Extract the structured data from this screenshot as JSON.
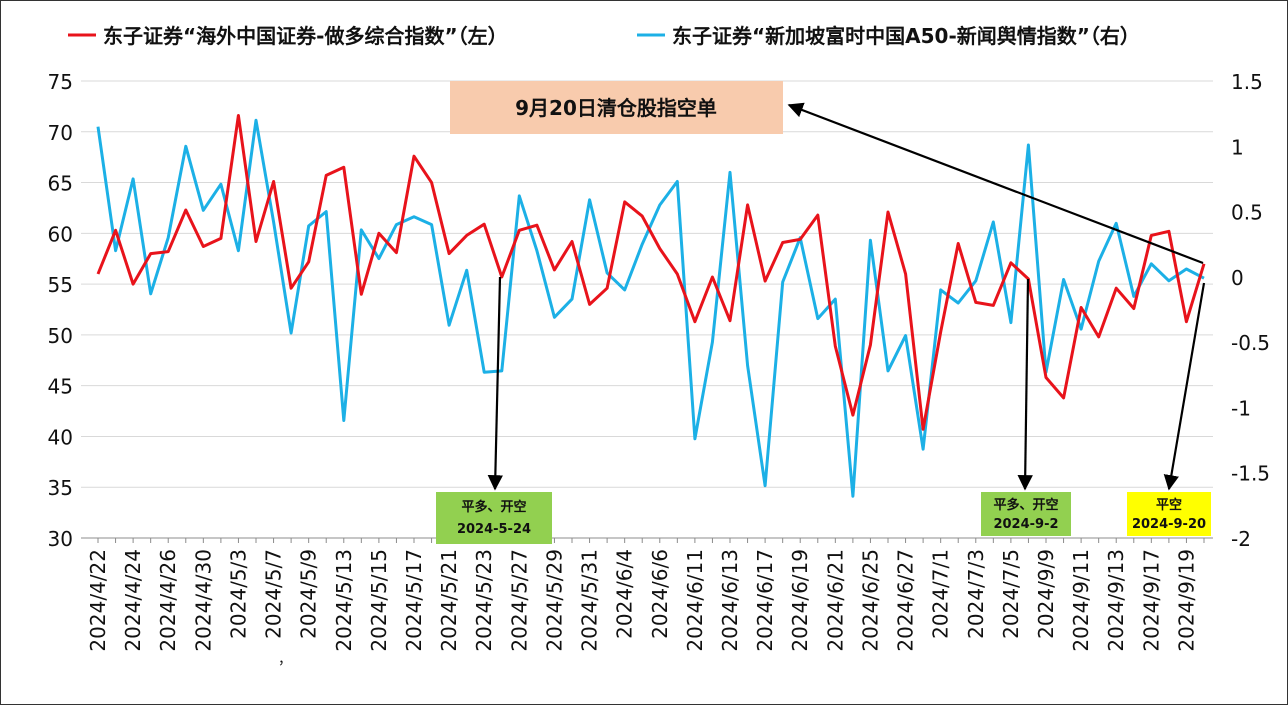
{
  "chart_data": {
    "type": "line",
    "title": "",
    "legend": {
      "placement": "top",
      "left_label": "东子证券“海外中国证券-做多综合指数”（左）",
      "right_label": "东子证券“新加坡富时中国A50-新闻舆情指数”（右）"
    },
    "colors": {
      "left_series": "#e8131b",
      "right_series": "#1cb0e6",
      "grid": "#d9d9d9"
    },
    "y_left": {
      "min": 30,
      "max": 75,
      "ticks": [
        "30",
        "35",
        "40",
        "45",
        "50",
        "55",
        "60",
        "65",
        "70",
        "75"
      ]
    },
    "y_right": {
      "min": -2,
      "max": 1.5,
      "ticks": [
        "-2",
        "-1.5",
        "-1",
        "-0.5",
        "0",
        "0.5",
        "1",
        "1.5"
      ]
    },
    "x_tick_labels": [
      "2024/4/22",
      "2024/4/24",
      "2024/4/26",
      "2024/4/30",
      "2024/5/3",
      "2024/5/7",
      "2024/5/9",
      "2024/5/13",
      "2024/5/15",
      "2024/5/17",
      "2024/5/21",
      "2024/5/23",
      "2024/5/27",
      "2024/5/29",
      "2024/5/31",
      "2024/6/4",
      "2024/6/6",
      "2024/6/11",
      "2024/6/13",
      "2024/6/17",
      "2024/6/19",
      "2024/6/21",
      "2024/6/25",
      "2024/6/27",
      "2024/7/1",
      "2024/7/3",
      "2024/7/5",
      "2024/9/9",
      "2024/9/11",
      "2024/9/13",
      "2024/9/17",
      "2024/9/19"
    ],
    "point_count": 64,
    "series": [
      {
        "name": "东子证券“海外中国证券-做多综合指数”（左）",
        "axis": "left",
        "values": [
          56,
          60.3,
          55,
          58,
          58.2,
          62.3,
          58.7,
          59.5,
          71.6,
          59.2,
          65.1,
          54.6,
          57.2,
          65.7,
          66.5,
          54,
          60,
          58.1,
          67.6,
          65,
          58,
          59.8,
          60.9,
          55.7,
          60.3,
          60.8,
          56.4,
          59.2,
          53,
          54.6,
          63.1,
          61.7,
          58.5,
          56,
          51.3,
          55.7,
          51.4,
          62.8,
          55.3,
          59.1,
          59.4,
          61.8,
          48.9,
          42.1,
          49,
          62.1,
          56,
          40.7,
          50.3,
          59,
          53.2,
          52.9,
          57.1,
          55.5,
          45.8,
          43.8,
          52.7,
          49.8,
          54.6,
          52.6,
          59.8,
          60.2,
          51.3,
          57
        ]
      },
      {
        "name": "东子证券“新加坡富时中国A50-新闻舆情指数”（右）",
        "axis": "right",
        "values": [
          1.15,
          0.2,
          0.75,
          -0.13,
          0.3,
          1.0,
          0.51,
          0.71,
          0.2,
          1.2,
          0.42,
          -0.43,
          0.39,
          0.5,
          -1.1,
          0.36,
          0.14,
          0.4,
          0.46,
          0.4,
          -0.37,
          0.05,
          -0.73,
          -0.72,
          0.62,
          0.2,
          -0.31,
          -0.17,
          0.59,
          0.03,
          -0.1,
          0.25,
          0.55,
          0.73,
          -1.24,
          -0.5,
          0.8,
          -0.68,
          -1.6,
          -0.04,
          0.3,
          -0.32,
          -0.17,
          -1.68,
          0.28,
          -0.72,
          -0.45,
          -1.32,
          -0.1,
          -0.2,
          -0.03,
          0.42,
          -0.35,
          1.01,
          -0.73,
          -0.02,
          -0.4,
          0.12,
          0.41,
          -0.15,
          0.1,
          -0.03,
          0.06,
          -0.01
        ]
      }
    ],
    "annotations": {
      "title_box": {
        "text": "9月20日清仓股指空单",
        "bg": "#f8cbad"
      },
      "signals": [
        {
          "line1": "平多、开空",
          "line2": "2024-5-24",
          "bg": "#92d050"
        },
        {
          "line1": "平多、开空",
          "line2": "2024-9-2",
          "bg": "#92d050"
        },
        {
          "line1": "平空",
          "line2": "2024-9-20",
          "bg": "#ffff00"
        }
      ],
      "stray_mark": "，"
    }
  }
}
